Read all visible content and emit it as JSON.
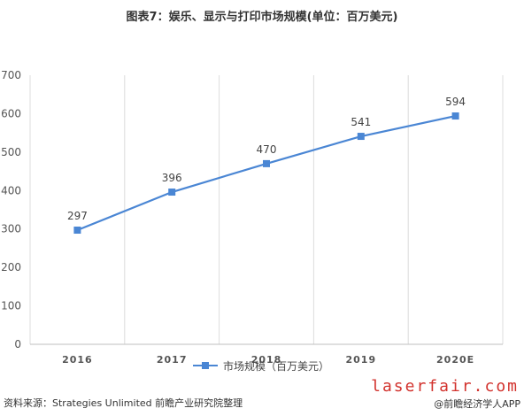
{
  "header": {
    "title": "图表7：娱乐、显示与打印市场规模(单位：百万美元)"
  },
  "chart_data": {
    "type": "line",
    "title": "图表7：娱乐、显示与打印市场规模(单位：百万美元)",
    "categories": [
      "2016",
      "2017",
      "2018",
      "2019",
      "2020E"
    ],
    "series": [
      {
        "name": "市场规模（百万美元）",
        "values": [
          297,
          396,
          470,
          541,
          594
        ]
      }
    ],
    "ylim": [
      0,
      700
    ],
    "yticks": [
      "0",
      "100",
      "200",
      "300",
      "400",
      "500",
      "600",
      "700"
    ],
    "grid": "vertical",
    "legend": "bottom",
    "line_color": "#4a86d4"
  },
  "footer": {
    "source": "资料来源：Strategies Unlimited 前瞻产业研究院整理",
    "brand_url": "laserfair.com",
    "brand_app": "@前瞻经济学人APP"
  }
}
